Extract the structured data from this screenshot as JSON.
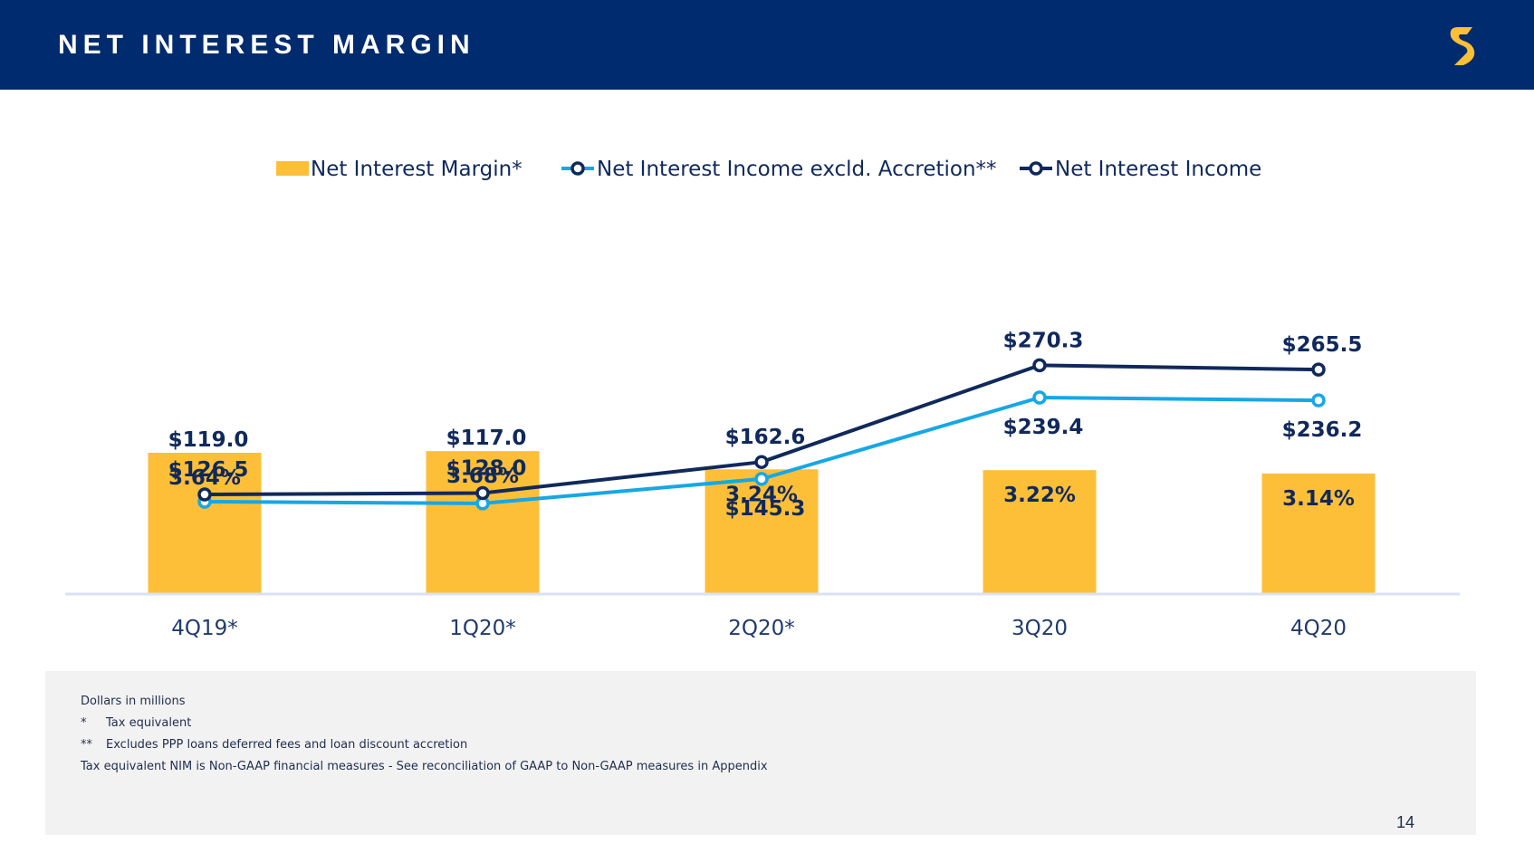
{
  "header": {
    "title": "NET INTEREST MARGIN"
  },
  "colors": {
    "header_bg": "#002b6e",
    "bar": "#fdbf38",
    "line_nii": "#10295c",
    "line_excl": "#16a7e6",
    "logo": "#fdbf38"
  },
  "chart_data": {
    "type": "bar",
    "categories": [
      "4Q19*",
      "1Q20*",
      "2Q20*",
      "3Q20",
      "4Q20"
    ],
    "series": [
      {
        "name": "Net Interest Margin*",
        "type": "bar",
        "values": [
          3.64,
          3.68,
          3.24,
          3.22,
          3.14
        ],
        "labels": [
          "3.64%",
          "3.68%",
          "3.24%",
          "3.22%",
          "3.14%"
        ]
      },
      {
        "name": "Net Interest Income excld. Accretion**",
        "type": "line",
        "values": [
          119.0,
          117.0,
          145.3,
          239.4,
          236.2
        ],
        "labels": [
          "$119.0",
          "$117.0",
          "$145.3",
          "$239.4",
          "$236.2"
        ]
      },
      {
        "name": "Net Interest Income",
        "type": "line",
        "values": [
          126.5,
          128.0,
          162.6,
          270.3,
          265.5
        ],
        "labels": [
          "$126.5",
          "$128.0",
          "$162.6",
          "$270.3",
          "$265.5"
        ]
      }
    ],
    "legend_position": "top-center",
    "grid": false
  },
  "footnotes": [
    {
      "mark": "",
      "text": "Dollars in millions"
    },
    {
      "mark": "*",
      "text": "Tax equivalent"
    },
    {
      "mark": "**",
      "text": "Excludes PPP loans deferred fees and loan discount accretion"
    },
    {
      "mark": "",
      "text": "Tax equivalent NIM is Non-GAAP financial measures - See reconciliation of GAAP to Non-GAAP measures in Appendix"
    }
  ],
  "page_number": "14"
}
